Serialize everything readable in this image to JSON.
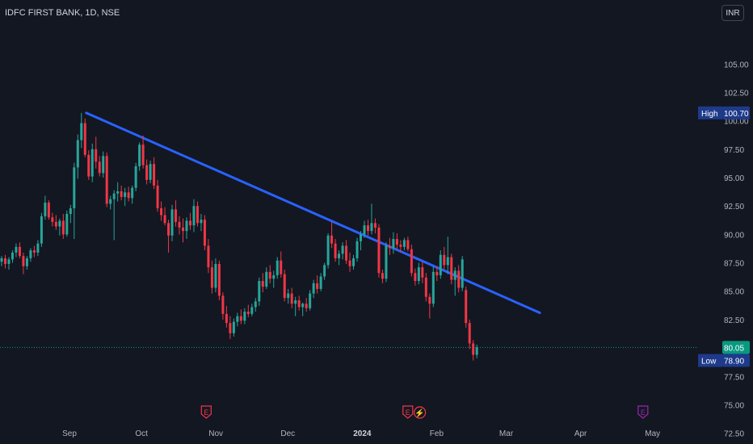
{
  "header": {
    "symbol_title": "IDFC FIRST BANK, 1D, NSE",
    "currency": "INR"
  },
  "colors": {
    "background": "#131722",
    "up": "#26a69a",
    "down": "#f23645",
    "trendline": "#2962ff",
    "grid": "#1e222d",
    "axis_text": "#b2b5be",
    "current_price": "#089981",
    "label_box": "#1e3a8a"
  },
  "chart_data": {
    "type": "candlestick",
    "x_axis_labels": [
      "Sep",
      "Oct",
      "Nov",
      "Dec",
      "2024",
      "Feb",
      "Mar",
      "Apr",
      "May"
    ],
    "y_axis_labels": [
      "105.00",
      "102.50",
      "100.00",
      "97.50",
      "95.00",
      "92.50",
      "90.00",
      "87.50",
      "85.00",
      "82.50",
      "80.00",
      "77.50",
      "75.00",
      "72.50"
    ],
    "ylim": [
      71.5,
      106.5
    ],
    "grid": false,
    "price_labels": {
      "high": {
        "label": "High",
        "value": "100.70"
      },
      "last": {
        "value": "80.05"
      },
      "low": {
        "label": "Low",
        "value": "78.90"
      }
    },
    "trendline": {
      "start": {
        "date": "2023-09-08",
        "price": 100.7
      },
      "end": {
        "date": "2024-03-15",
        "price": 83.1
      }
    },
    "earnings_markers": [
      {
        "date": "2023-10-28",
        "label": "E"
      },
      {
        "date": "2024-01-20",
        "label": "E"
      },
      {
        "date": "2024-04-27",
        "label": "E"
      }
    ],
    "dividend_markers": [
      {
        "date": "2024-01-25",
        "label": "⚡"
      }
    ],
    "candles": [
      [
        87.6,
        88.1,
        87.2,
        87.9
      ],
      [
        87.9,
        88.2,
        87.0,
        87.4
      ],
      [
        87.4,
        88.0,
        86.9,
        87.8
      ],
      [
        87.8,
        88.6,
        87.5,
        88.4
      ],
      [
        88.4,
        89.2,
        88.0,
        88.9
      ],
      [
        88.9,
        89.3,
        87.9,
        88.1
      ],
      [
        88.1,
        88.4,
        86.5,
        87.2
      ],
      [
        87.2,
        88.1,
        86.9,
        87.9
      ],
      [
        87.9,
        88.8,
        87.6,
        88.6
      ],
      [
        88.6,
        89.0,
        88.0,
        88.4
      ],
      [
        88.4,
        89.5,
        88.1,
        89.2
      ],
      [
        89.2,
        91.9,
        88.9,
        91.6
      ],
      [
        91.6,
        93.4,
        91.3,
        92.8
      ],
      [
        92.8,
        93.0,
        91.3,
        91.5
      ],
      [
        91.5,
        91.9,
        90.7,
        91.1
      ],
      [
        91.1,
        91.7,
        90.4,
        90.7
      ],
      [
        90.7,
        91.4,
        89.9,
        91.2
      ],
      [
        91.2,
        91.8,
        89.6,
        90.0
      ],
      [
        90.0,
        92.1,
        89.8,
        91.8
      ],
      [
        91.8,
        92.6,
        91.0,
        92.3
      ],
      [
        92.3,
        96.3,
        89.6,
        95.9
      ],
      [
        95.9,
        98.8,
        94.9,
        98.3
      ],
      [
        98.3,
        100.7,
        97.6,
        99.8
      ],
      [
        99.8,
        100.2,
        96.8,
        97.0
      ],
      [
        97.0,
        97.4,
        94.8,
        95.1
      ],
      [
        95.1,
        98.0,
        94.6,
        97.5
      ],
      [
        97.5,
        98.6,
        95.8,
        96.4
      ],
      [
        96.4,
        96.9,
        95.1,
        95.4
      ],
      [
        95.4,
        97.3,
        95.0,
        96.9
      ],
      [
        96.9,
        97.2,
        92.4,
        92.7
      ],
      [
        92.7,
        93.4,
        92.2,
        93.1
      ],
      [
        93.1,
        93.9,
        89.5,
        93.6
      ],
      [
        93.6,
        94.6,
        92.9,
        93.8
      ],
      [
        93.8,
        94.3,
        93.0,
        93.3
      ],
      [
        93.3,
        94.1,
        92.5,
        93.7
      ],
      [
        93.7,
        94.2,
        92.9,
        93.2
      ],
      [
        93.2,
        94.3,
        92.7,
        94.1
      ],
      [
        94.1,
        96.3,
        93.8,
        96.0
      ],
      [
        96.0,
        98.1,
        95.6,
        97.9
      ],
      [
        97.9,
        98.7,
        95.8,
        96.1
      ],
      [
        96.1,
        96.6,
        94.4,
        94.8
      ],
      [
        94.8,
        96.5,
        94.5,
        96.2
      ],
      [
        96.2,
        96.8,
        94.0,
        94.3
      ],
      [
        94.3,
        94.8,
        92.0,
        92.3
      ],
      [
        92.3,
        92.9,
        91.2,
        91.7
      ],
      [
        91.7,
        92.4,
        90.8,
        91.0
      ],
      [
        91.0,
        91.3,
        88.4,
        89.9
      ],
      [
        89.9,
        92.6,
        89.4,
        92.2
      ],
      [
        92.2,
        93.0,
        90.7,
        91.1
      ],
      [
        91.1,
        91.6,
        90.0,
        90.6
      ],
      [
        90.6,
        91.4,
        89.3,
        90.3
      ],
      [
        90.3,
        91.5,
        89.6,
        91.2
      ],
      [
        91.2,
        91.9,
        90.4,
        90.8
      ],
      [
        90.8,
        93.1,
        90.2,
        92.5
      ],
      [
        92.5,
        92.9,
        90.7,
        91.0
      ],
      [
        91.0,
        91.8,
        90.3,
        91.3
      ],
      [
        91.3,
        91.7,
        88.6,
        89.0
      ],
      [
        89.0,
        89.6,
        86.6,
        87.1
      ],
      [
        87.1,
        87.7,
        84.8,
        85.3
      ],
      [
        85.3,
        87.9,
        84.9,
        87.4
      ],
      [
        87.4,
        87.7,
        84.2,
        84.6
      ],
      [
        84.6,
        84.9,
        82.5,
        83.0
      ],
      [
        83.0,
        83.7,
        81.8,
        82.2
      ],
      [
        82.2,
        82.8,
        80.8,
        81.3
      ],
      [
        81.3,
        82.6,
        81.0,
        82.3
      ],
      [
        82.3,
        83.1,
        81.9,
        82.8
      ],
      [
        82.8,
        83.4,
        82.1,
        82.4
      ],
      [
        82.4,
        83.5,
        82.1,
        83.2
      ],
      [
        83.2,
        83.8,
        82.7,
        83.0
      ],
      [
        83.0,
        83.9,
        82.8,
        83.6
      ],
      [
        83.6,
        84.4,
        83.2,
        84.1
      ],
      [
        84.1,
        86.2,
        83.7,
        85.9
      ],
      [
        85.9,
        86.6,
        84.9,
        85.4
      ],
      [
        85.4,
        87.1,
        85.2,
        86.7
      ],
      [
        86.7,
        87.3,
        85.7,
        86.1
      ],
      [
        86.1,
        86.8,
        85.3,
        86.4
      ],
      [
        86.4,
        88.0,
        86.1,
        87.7
      ],
      [
        87.7,
        88.5,
        86.2,
        86.5
      ],
      [
        86.5,
        86.9,
        84.1,
        84.4
      ],
      [
        84.4,
        85.2,
        83.9,
        84.8
      ],
      [
        84.8,
        85.3,
        83.5,
        83.9
      ],
      [
        83.9,
        84.5,
        82.8,
        84.2
      ],
      [
        84.2,
        84.6,
        83.3,
        83.6
      ],
      [
        83.6,
        84.0,
        82.8,
        83.9
      ],
      [
        83.9,
        84.4,
        83.2,
        83.5
      ],
      [
        83.5,
        85.1,
        83.3,
        84.8
      ],
      [
        84.8,
        86.0,
        84.4,
        85.7
      ],
      [
        85.7,
        86.4,
        84.8,
        85.2
      ],
      [
        85.2,
        86.6,
        85.0,
        86.3
      ],
      [
        86.3,
        87.5,
        86.0,
        87.3
      ],
      [
        87.3,
        90.1,
        87.0,
        89.9
      ],
      [
        89.9,
        91.1,
        88.8,
        89.2
      ],
      [
        89.2,
        89.6,
        87.6,
        87.9
      ],
      [
        87.9,
        88.6,
        87.3,
        88.3
      ],
      [
        88.3,
        89.3,
        87.8,
        89.0
      ],
      [
        89.0,
        89.5,
        87.4,
        87.7
      ],
      [
        87.7,
        88.4,
        86.7,
        87.2
      ],
      [
        87.2,
        88.2,
        86.9,
        87.9
      ],
      [
        87.9,
        89.7,
        87.6,
        89.4
      ],
      [
        89.4,
        90.3,
        88.6,
        90.0
      ],
      [
        90.0,
        91.2,
        89.7,
        90.8
      ],
      [
        90.8,
        91.3,
        89.9,
        90.3
      ],
      [
        90.3,
        92.7,
        90.0,
        91.0
      ],
      [
        91.0,
        91.4,
        90.1,
        90.6
      ],
      [
        90.6,
        90.9,
        86.2,
        86.6
      ],
      [
        86.6,
        86.9,
        85.7,
        86.1
      ],
      [
        86.1,
        89.3,
        85.8,
        89.0
      ],
      [
        89.0,
        89.7,
        88.2,
        88.8
      ],
      [
        88.8,
        90.2,
        88.3,
        89.6
      ],
      [
        89.6,
        90.1,
        88.7,
        89.1
      ],
      [
        89.1,
        89.5,
        88.4,
        88.9
      ],
      [
        88.9,
        89.7,
        88.6,
        89.5
      ],
      [
        89.5,
        89.8,
        88.5,
        88.7
      ],
      [
        88.7,
        89.1,
        86.3,
        86.6
      ],
      [
        86.6,
        87.0,
        85.5,
        85.9
      ],
      [
        85.9,
        87.5,
        85.6,
        87.1
      ],
      [
        87.1,
        87.6,
        85.7,
        86.2
      ],
      [
        86.2,
        86.6,
        84.1,
        84.5
      ],
      [
        84.5,
        84.8,
        82.6,
        83.9
      ],
      [
        83.9,
        87.2,
        83.6,
        86.7
      ],
      [
        86.7,
        87.2,
        85.9,
        86.4
      ],
      [
        86.4,
        88.6,
        86.1,
        88.2
      ],
      [
        88.2,
        88.9,
        86.9,
        87.3
      ],
      [
        87.3,
        89.8,
        86.5,
        88.0
      ],
      [
        88.0,
        88.3,
        85.6,
        86.0
      ],
      [
        86.0,
        87.1,
        84.6,
        86.8
      ],
      [
        86.8,
        87.3,
        84.9,
        85.3
      ],
      [
        85.3,
        88.1,
        85.0,
        87.8
      ],
      [
        85.1,
        85.4,
        81.8,
        82.2
      ],
      [
        82.2,
        82.5,
        79.9,
        80.4
      ],
      [
        80.4,
        80.7,
        78.9,
        79.4
      ],
      [
        79.4,
        80.3,
        79.1,
        80.05
      ]
    ]
  }
}
